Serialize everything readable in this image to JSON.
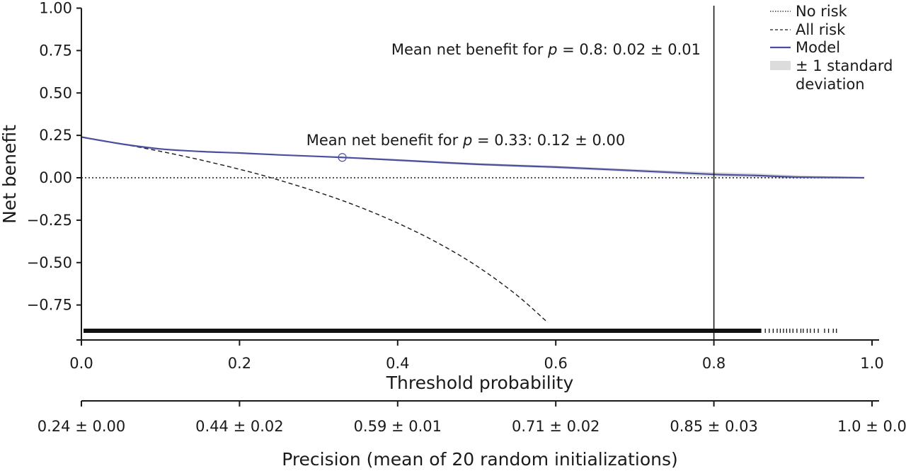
{
  "chart_data": {
    "type": "line",
    "title": "",
    "xlabel": "Threshold probability",
    "ylabel": "Net benefit",
    "xlim": [
      0.0,
      1.0
    ],
    "ylim": [
      -0.955,
      1.0
    ],
    "x_ticks": [
      0.0,
      0.2,
      0.4,
      0.6,
      0.8,
      1.0
    ],
    "x_tick_labels": [
      "0.0",
      "0.2",
      "0.4",
      "0.6",
      "0.8",
      "1.0"
    ],
    "y_ticks": [
      1.0,
      0.75,
      0.5,
      0.25,
      0.0,
      -0.25,
      -0.5,
      -0.75
    ],
    "y_tick_labels": [
      "1.00",
      "0.75",
      "0.50",
      "0.25",
      "0.00",
      "−0.25",
      "−0.50",
      "−0.75"
    ],
    "grid": false,
    "legend_position": "top-right",
    "series": [
      {
        "name": "No risk",
        "style": "dotted",
        "color": "#1a1a1a",
        "x": [
          0.0,
          0.99
        ],
        "y": [
          0.0,
          0.0
        ]
      },
      {
        "name": "All risk",
        "style": "dashed",
        "color": "#1a1a1a",
        "prevalence": 0.24,
        "x": [
          0.0,
          0.05,
          0.1,
          0.15,
          0.2,
          0.24,
          0.3,
          0.35,
          0.4,
          0.45,
          0.5,
          0.55,
          0.59
        ],
        "y": [
          0.24,
          0.2,
          0.156,
          0.106,
          0.05,
          0.0,
          -0.086,
          -0.169,
          -0.267,
          -0.382,
          -0.52,
          -0.689,
          -0.854
        ]
      },
      {
        "name": "Model",
        "style": "solid",
        "color": "#4a4f9e",
        "x": [
          0.0,
          0.05,
          0.1,
          0.15,
          0.2,
          0.25,
          0.33,
          0.4,
          0.5,
          0.6,
          0.7,
          0.8,
          0.85,
          0.9,
          0.95,
          0.99
        ],
        "y": [
          0.24,
          0.2,
          0.17,
          0.155,
          0.146,
          0.135,
          0.12,
          0.104,
          0.08,
          0.063,
          0.042,
          0.02,
          0.014,
          0.005,
          0.002,
          0.0
        ],
        "sd": [
          0.0,
          0.0,
          0.0,
          0.0,
          0.0,
          0.0,
          0.0,
          0.003,
          0.004,
          0.005,
          0.006,
          0.01,
          0.01,
          0.008,
          0.004,
          0.0
        ]
      }
    ],
    "legend": [
      {
        "label": "No risk",
        "style": "dotted"
      },
      {
        "label": "All risk",
        "style": "dashed"
      },
      {
        "label": "Model",
        "style": "solid"
      },
      {
        "label": "± 1 standard",
        "label2": "deviation",
        "style": "band"
      }
    ],
    "vertical_line": {
      "x": 0.8,
      "color": "#1a1a1a"
    },
    "marker": {
      "x": 0.33,
      "y": 0.12,
      "shape": "open-circle"
    },
    "annotations": [
      {
        "prefix": "Mean net benefit for ",
        "var": "p",
        "suffix": " = 0.8: 0.02 ± 0.01",
        "anchor_x": 0.8,
        "anchor_y": 0.75,
        "align": "end"
      },
      {
        "prefix": "Mean net benefit for ",
        "var": "p",
        "suffix": " = 0.33: 0.12 ± 0.00",
        "anchor_x": 0.33,
        "anchor_y": 0.235,
        "align": "middle"
      }
    ],
    "rug": {
      "description": "distribution of predicted probabilities",
      "dense_until": 0.86,
      "sparse_x": [
        0.865,
        0.87,
        0.875,
        0.88,
        0.884,
        0.888,
        0.892,
        0.896,
        0.9,
        0.905,
        0.91,
        0.913,
        0.918,
        0.922,
        0.927,
        0.932,
        0.94,
        0.945,
        0.951,
        0.955
      ]
    },
    "secondary_axis": {
      "label": "Precision (mean of 20 random initializations)",
      "ticks": [
        0.0,
        0.2,
        0.4,
        0.6,
        0.8,
        1.0
      ],
      "tick_labels": [
        "0.24 ± 0.00",
        "0.44 ± 0.02",
        "0.59 ± 0.01",
        "0.71 ± 0.02",
        "0.85 ± 0.03",
        "1.0 ± 0.0"
      ]
    }
  }
}
